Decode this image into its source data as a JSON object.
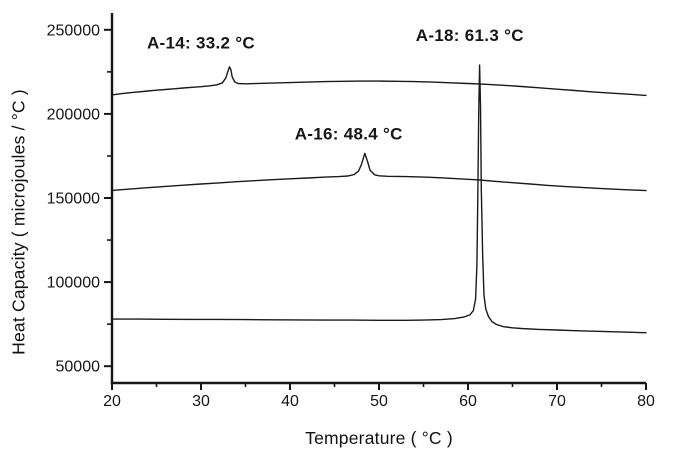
{
  "figure": {
    "background": "#ffffff",
    "ink_color": "#161616",
    "curve_color": "#1a1a1a"
  },
  "chart_data": {
    "type": "line",
    "title": "",
    "xlabel": "Temperature ( °C )",
    "ylabel": "Heat Capacity ( microjoules / °C )",
    "xlim": [
      20,
      80
    ],
    "ylim": [
      40000,
      260000
    ],
    "x_major_ticks": [
      20,
      30,
      40,
      50,
      60,
      70,
      80
    ],
    "x_minor_ticks": [
      25,
      35,
      45,
      55,
      65,
      75
    ],
    "y_major_ticks": [
      50000,
      100000,
      150000,
      200000,
      250000
    ],
    "y_minor_ticks": [
      75000,
      125000,
      175000,
      225000
    ],
    "grid": false,
    "legend": "none",
    "annotations": [
      {
        "id": "a-14",
        "text": "A-14: 33.2 °C",
        "x": 30.0,
        "y": 242500
      },
      {
        "id": "a-16",
        "text": "A-16: 48.4 °C",
        "x": 46.6,
        "y": 188500
      },
      {
        "id": "a-18",
        "text": "A-18: 61.3 °C",
        "x": 60.2,
        "y": 247000
      }
    ],
    "series": [
      {
        "name": "A-14",
        "peak_temperature_c": 33.2,
        "peak_heat_capacity": 228000,
        "points": [
          [
            20,
            211300
          ],
          [
            21,
            212000
          ],
          [
            22,
            212600
          ],
          [
            23,
            213100
          ],
          [
            24,
            213600
          ],
          [
            25,
            214100
          ],
          [
            26,
            214500
          ],
          [
            27,
            214900
          ],
          [
            28,
            215400
          ],
          [
            29,
            215800
          ],
          [
            30,
            216200
          ],
          [
            31,
            216700
          ],
          [
            31.8,
            217300
          ],
          [
            32.4,
            218500
          ],
          [
            32.8,
            221500
          ],
          [
            33.0,
            225000
          ],
          [
            33.2,
            228000
          ],
          [
            33.35,
            226500
          ],
          [
            33.5,
            222000
          ],
          [
            33.8,
            219000
          ],
          [
            34.2,
            218000
          ],
          [
            35,
            217900
          ],
          [
            36,
            218000
          ],
          [
            38,
            218300
          ],
          [
            40,
            218600
          ],
          [
            42,
            218900
          ],
          [
            44,
            219200
          ],
          [
            46,
            219400
          ],
          [
            48,
            219500
          ],
          [
            50,
            219500
          ],
          [
            52,
            219400
          ],
          [
            54,
            219200
          ],
          [
            56,
            218900
          ],
          [
            58,
            218500
          ],
          [
            60,
            218100
          ],
          [
            62,
            217600
          ],
          [
            64,
            217000
          ],
          [
            66,
            216300
          ],
          [
            68,
            215500
          ],
          [
            70,
            214700
          ],
          [
            72,
            213900
          ],
          [
            74,
            213100
          ],
          [
            76,
            212400
          ],
          [
            78,
            211700
          ],
          [
            80,
            211000
          ]
        ]
      },
      {
        "name": "A-16",
        "peak_temperature_c": 48.4,
        "peak_heat_capacity": 176500,
        "points": [
          [
            20,
            154500
          ],
          [
            22,
            155300
          ],
          [
            24,
            156100
          ],
          [
            26,
            156900
          ],
          [
            28,
            157600
          ],
          [
            30,
            158300
          ],
          [
            32,
            159000
          ],
          [
            34,
            159700
          ],
          [
            36,
            160300
          ],
          [
            38,
            160900
          ],
          [
            40,
            161400
          ],
          [
            42,
            161900
          ],
          [
            44,
            162400
          ],
          [
            45.5,
            162700
          ],
          [
            46.5,
            163100
          ],
          [
            47.2,
            163900
          ],
          [
            47.7,
            166000
          ],
          [
            48.0,
            169500
          ],
          [
            48.4,
            176500
          ],
          [
            48.7,
            172000
          ],
          [
            49.0,
            166500
          ],
          [
            49.5,
            163800
          ],
          [
            50,
            163200
          ],
          [
            51,
            162900
          ],
          [
            53,
            162700
          ],
          [
            55,
            162400
          ],
          [
            57,
            162000
          ],
          [
            59,
            161400
          ],
          [
            61,
            160800
          ],
          [
            61.3,
            160700
          ],
          [
            63,
            159900
          ],
          [
            65,
            159100
          ],
          [
            67,
            158300
          ],
          [
            69,
            157500
          ],
          [
            71,
            156800
          ],
          [
            73,
            156200
          ],
          [
            75,
            155600
          ],
          [
            77,
            155100
          ],
          [
            80,
            154400
          ]
        ]
      },
      {
        "name": "A-18",
        "peak_temperature_c": 61.3,
        "peak_heat_capacity": 229000,
        "points": [
          [
            20,
            78000
          ],
          [
            23,
            78000
          ],
          [
            26,
            77900
          ],
          [
            29,
            77800
          ],
          [
            32,
            77800
          ],
          [
            35,
            77700
          ],
          [
            38,
            77600
          ],
          [
            41,
            77500
          ],
          [
            44,
            77400
          ],
          [
            47,
            77400
          ],
          [
            50,
            77300
          ],
          [
            53,
            77300
          ],
          [
            55,
            77400
          ],
          [
            57,
            77700
          ],
          [
            58.5,
            78300
          ],
          [
            59.5,
            79200
          ],
          [
            60.2,
            80500
          ],
          [
            60.6,
            83000
          ],
          [
            60.85,
            90000
          ],
          [
            61.0,
            110000
          ],
          [
            61.1,
            150000
          ],
          [
            61.2,
            200000
          ],
          [
            61.3,
            229000
          ],
          [
            61.4,
            205000
          ],
          [
            61.5,
            155000
          ],
          [
            61.65,
            115000
          ],
          [
            61.8,
            92000
          ],
          [
            62.0,
            84000
          ],
          [
            62.3,
            79500
          ],
          [
            62.7,
            76500
          ],
          [
            63.2,
            74800
          ],
          [
            64,
            73500
          ],
          [
            65,
            72800
          ],
          [
            66,
            72400
          ],
          [
            68,
            71900
          ],
          [
            70,
            71500
          ],
          [
            72,
            71100
          ],
          [
            74,
            70800
          ],
          [
            76,
            70500
          ],
          [
            78,
            70200
          ],
          [
            80,
            69900
          ]
        ]
      }
    ]
  }
}
